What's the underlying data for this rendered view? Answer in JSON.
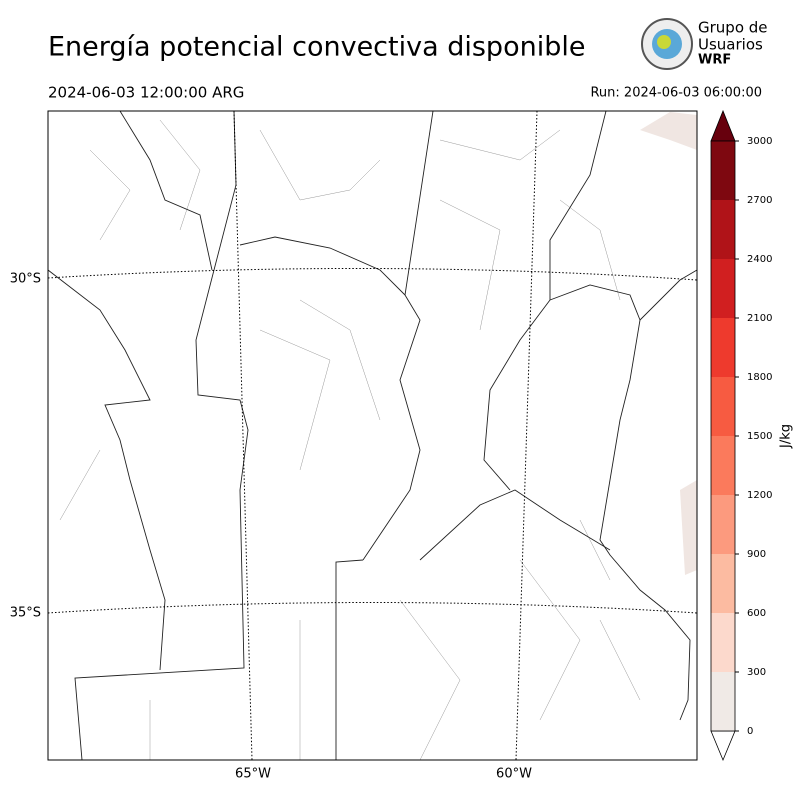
{
  "header": {
    "title": "Energía potencial convectiva disponible",
    "valid_time": "2024-06-03 12:00:00 ARG",
    "run": "Run: 2024-06-03 06:00:00"
  },
  "logo": {
    "lines": [
      "Grupo de",
      "Usuarios",
      "WRF"
    ]
  },
  "map": {
    "lat_labels": [
      "30°S",
      "35°S"
    ],
    "lon_labels": [
      "65°W",
      "60°W"
    ]
  },
  "colorbar": {
    "label": "J/kg",
    "lim": [
      0,
      3000
    ],
    "ticks": [
      0,
      300,
      600,
      900,
      1200,
      1500,
      1800,
      2100,
      2400,
      2700,
      3000
    ],
    "colors": [
      "#f0eae6",
      "#fcd9cc",
      "#fcbba1",
      "#fc9a7e",
      "#fb7a5c",
      "#f75b41",
      "#ee3a2d",
      "#d11f20",
      "#b01318",
      "#7e0810"
    ]
  }
}
